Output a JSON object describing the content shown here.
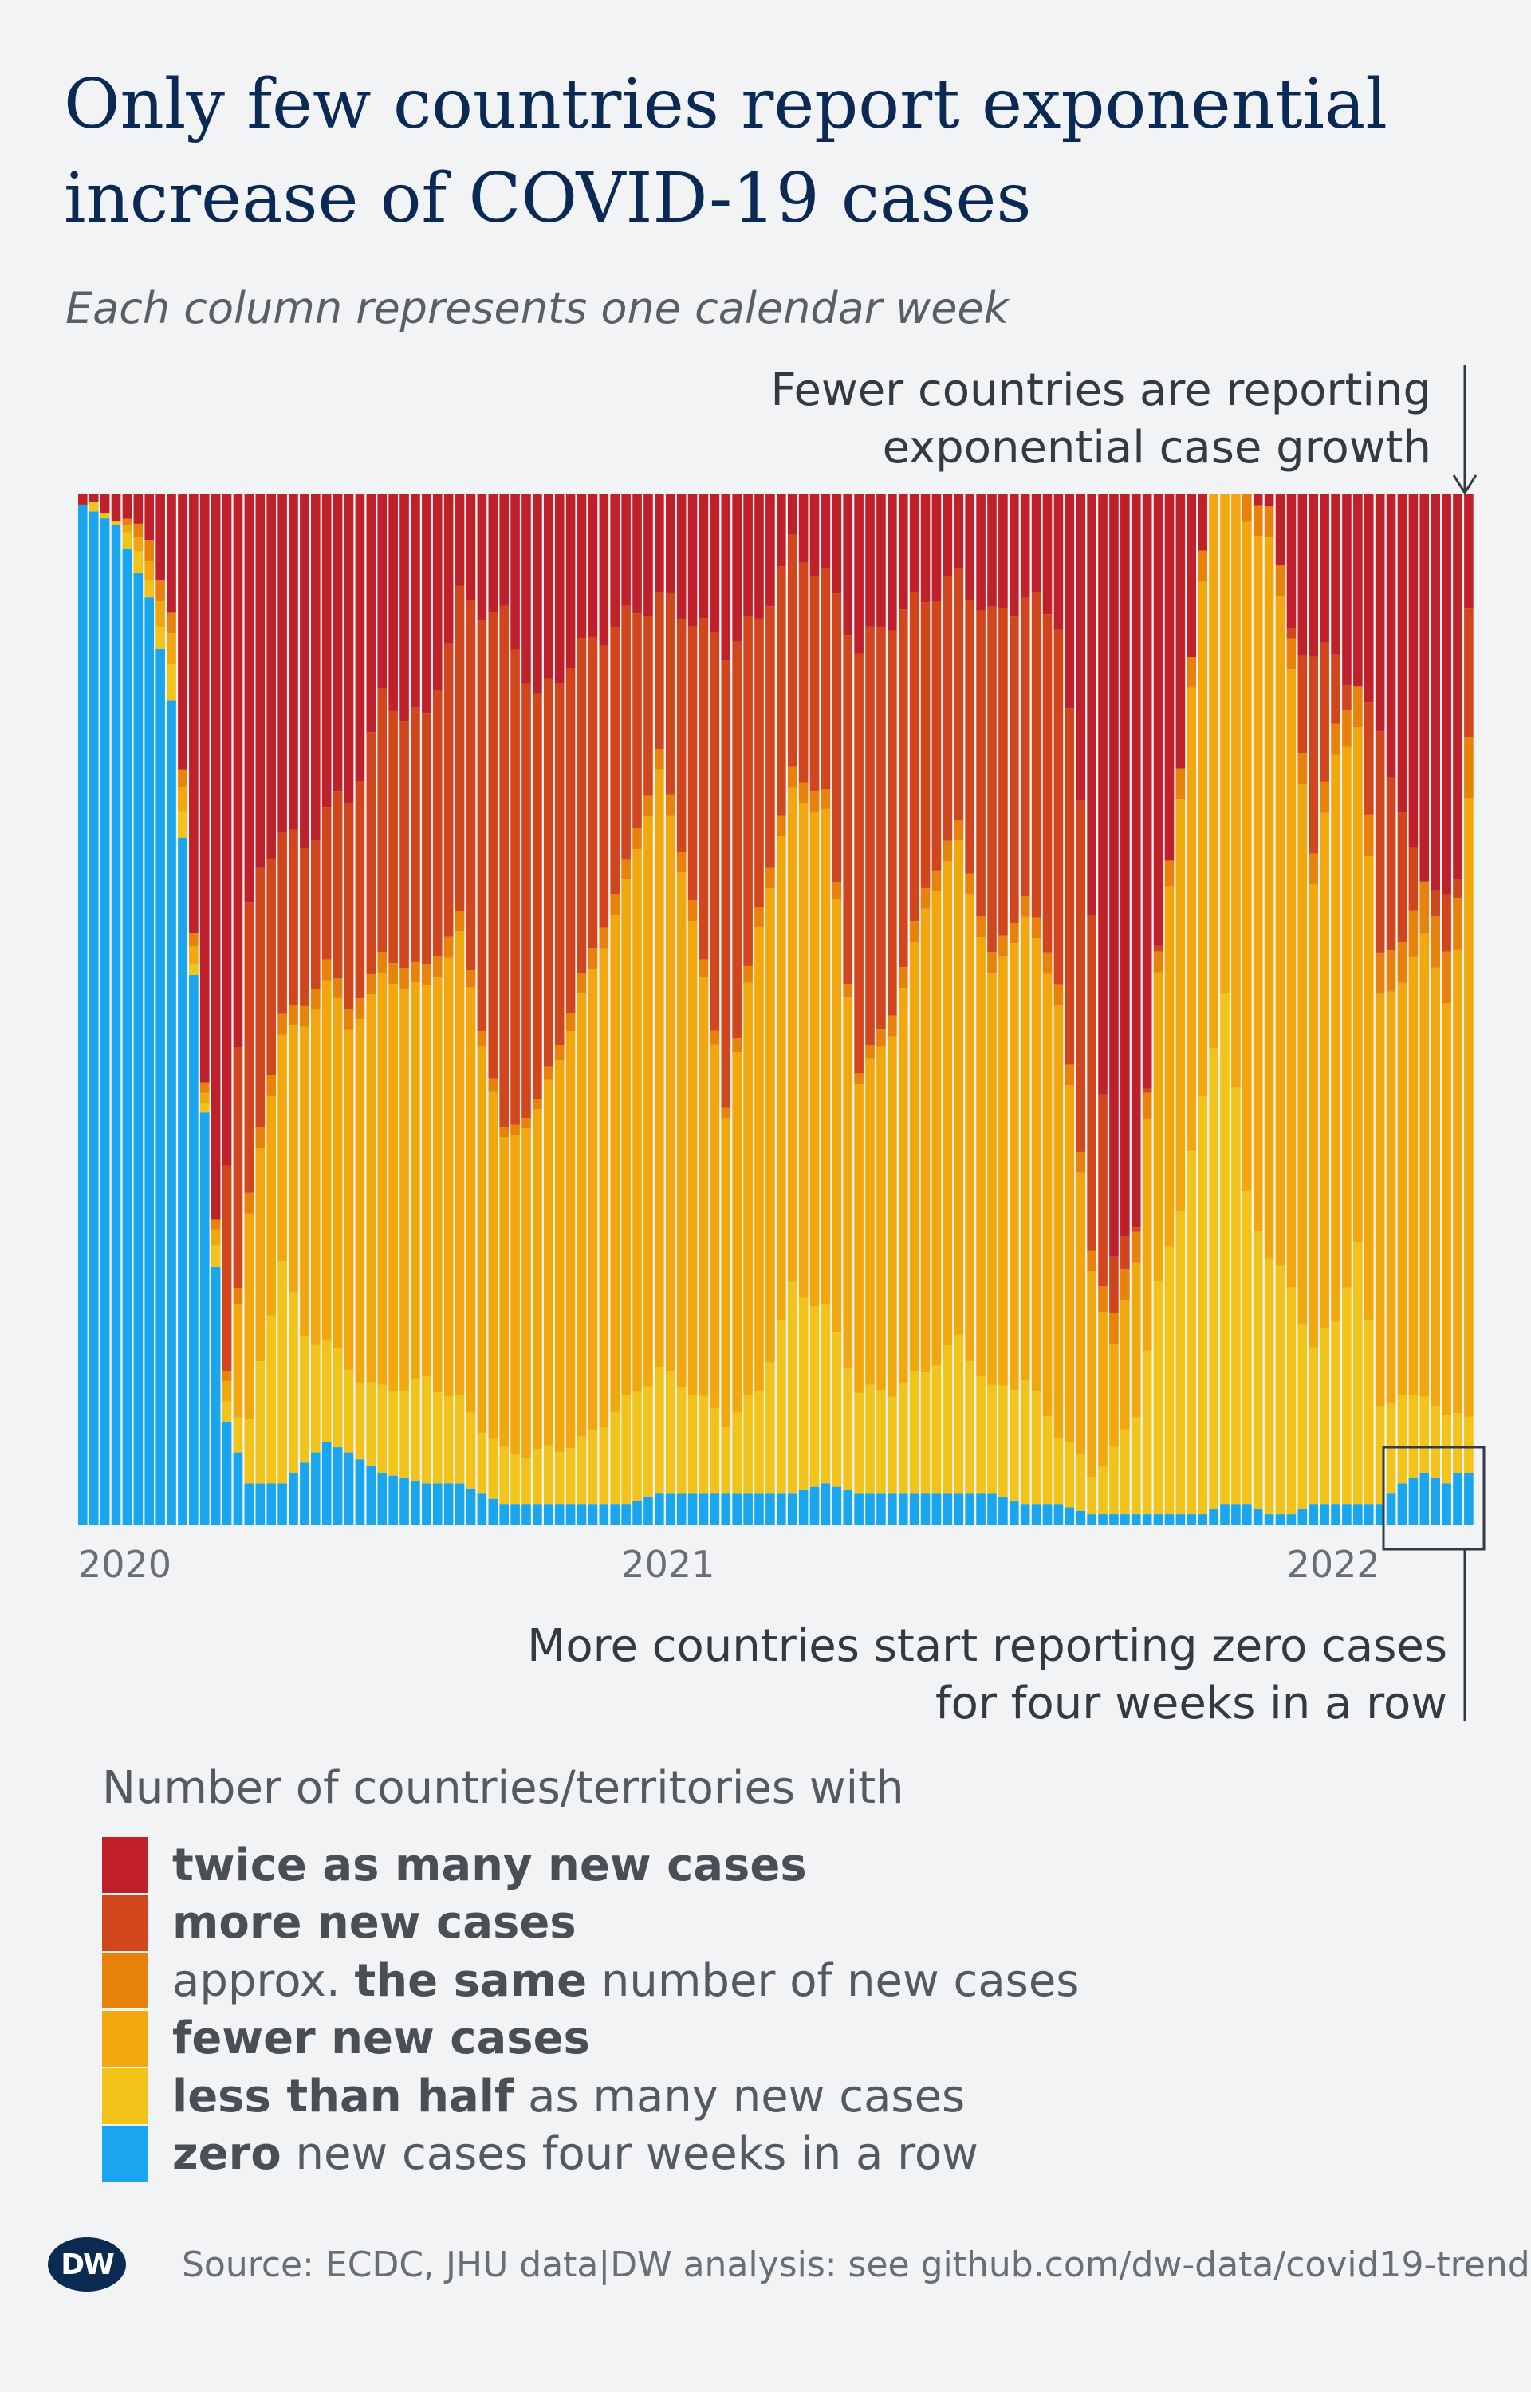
{
  "title": "Only few countries report exponential increase of COVID-19 cases",
  "subtitle": "Each column represents one calendar week",
  "colors": {
    "twice": "#c0202a",
    "more": "#d2461e",
    "same": "#e8820a",
    "fewer": "#f2a80c",
    "less_half": "#f2c41a",
    "zero": "#19a6ef",
    "frame": "#333a42"
  },
  "annotations": {
    "top": [
      "Fewer countries are reporting",
      "exponential case growth"
    ],
    "bottom": [
      "More countries start reporting zero cases",
      "for four weeks in a row"
    ]
  },
  "legend": {
    "title": "Number of countries/territories with",
    "items": [
      {
        "key": "twice",
        "bold": "twice as many new cases",
        "rest": ""
      },
      {
        "key": "more",
        "bold": "more new cases",
        "rest": ""
      },
      {
        "key": "same",
        "pre": "approx. ",
        "bold": "the same",
        "rest": " number of new cases"
      },
      {
        "key": "fewer",
        "bold": "fewer new cases",
        "rest": ""
      },
      {
        "key": "less_half",
        "bold": "less than half",
        "rest": " as many new cases"
      },
      {
        "key": "zero",
        "bold": "zero",
        "rest": " new cases four weeks in a row"
      }
    ]
  },
  "source": "Source: ECDC, JHU data|DW analysis: see github.com/dw-data/covid19-trend",
  "logo": "DW",
  "chart_data": {
    "type": "bar",
    "stacked": true,
    "normalized": true,
    "x_tick_labels": [
      "2020",
      "2021",
      "2022"
    ],
    "x_tick_weeks": [
      0,
      49,
      109
    ],
    "series": [
      {
        "name": "zero new cases four weeks in a row",
        "color_key": "zero"
      },
      {
        "name": "less than half as many new cases",
        "color_key": "less_half"
      },
      {
        "name": "fewer new cases",
        "color_key": "fewer"
      },
      {
        "name": "approx. the same number of new cases",
        "color_key": "same"
      },
      {
        "name": "more new cases",
        "color_key": "more"
      },
      {
        "name": "twice as many new cases",
        "color_key": "twice"
      }
    ],
    "keyframes": [
      {
        "w": 0,
        "z": 99,
        "l": 0,
        "f": 0,
        "s": 0,
        "m": 0.5
      },
      {
        "w": 3,
        "z": 97,
        "l": 1,
        "f": 0,
        "s": 0,
        "m": 2
      },
      {
        "w": 6,
        "z": 90,
        "l": 2,
        "f": 2,
        "s": 2,
        "m": 3
      },
      {
        "w": 8,
        "z": 80,
        "l": 3,
        "f": 3,
        "s": 2,
        "m": 5
      },
      {
        "w": 11,
        "z": 40,
        "l": 1,
        "f": 1,
        "s": 1,
        "m": 12
      },
      {
        "w": 13,
        "z": 10,
        "l": 2,
        "f": 2,
        "s": 1,
        "m": 35
      },
      {
        "w": 15,
        "z": 4,
        "l": 6,
        "f": 20,
        "s": 2,
        "m": 60
      },
      {
        "w": 18,
        "z": 4,
        "l": 22,
        "f": 22,
        "s": 2,
        "m": 68
      },
      {
        "w": 20,
        "z": 6,
        "l": 12,
        "f": 30,
        "s": 2,
        "m": 65
      },
      {
        "w": 22,
        "z": 8,
        "l": 10,
        "f": 35,
        "s": 2,
        "m": 70
      },
      {
        "w": 24,
        "z": 7,
        "l": 8,
        "f": 33,
        "s": 2,
        "m": 70
      },
      {
        "w": 27,
        "z": 5,
        "l": 8,
        "f": 40,
        "s": 2,
        "m": 80
      },
      {
        "w": 31,
        "z": 4,
        "l": 10,
        "f": 38,
        "s": 2,
        "m": 78
      },
      {
        "w": 34,
        "z": 4,
        "l": 8,
        "f": 45,
        "s": 2,
        "m": 90
      },
      {
        "w": 38,
        "z": 2,
        "l": 5,
        "f": 30,
        "s": 1,
        "m": 88
      },
      {
        "w": 41,
        "z": 2,
        "l": 5,
        "f": 33,
        "s": 1,
        "m": 80
      },
      {
        "w": 45,
        "z": 2,
        "l": 6,
        "f": 43,
        "s": 2,
        "m": 85
      },
      {
        "w": 49,
        "z": 2,
        "l": 10,
        "f": 50,
        "s": 2,
        "m": 88
      },
      {
        "w": 52,
        "z": 3,
        "l": 12,
        "f": 58,
        "s": 2,
        "m": 90
      },
      {
        "w": 55,
        "z": 3,
        "l": 10,
        "f": 46,
        "s": 2,
        "m": 88
      },
      {
        "w": 58,
        "z": 3,
        "l": 7,
        "f": 30,
        "s": 1,
        "m": 85
      },
      {
        "w": 61,
        "z": 3,
        "l": 10,
        "f": 45,
        "s": 2,
        "m": 88
      },
      {
        "w": 64,
        "z": 3,
        "l": 20,
        "f": 48,
        "s": 2,
        "m": 95
      },
      {
        "w": 67,
        "z": 4,
        "l": 17,
        "f": 48,
        "s": 2,
        "m": 92
      },
      {
        "w": 70,
        "z": 3,
        "l": 10,
        "f": 30,
        "s": 1,
        "m": 85
      },
      {
        "w": 73,
        "z": 3,
        "l": 10,
        "f": 35,
        "s": 2,
        "m": 88
      },
      {
        "w": 76,
        "z": 3,
        "l": 12,
        "f": 45,
        "s": 2,
        "m": 90
      },
      {
        "w": 79,
        "z": 3,
        "l": 15,
        "f": 48,
        "s": 2,
        "m": 92
      },
      {
        "w": 82,
        "z": 3,
        "l": 10,
        "f": 40,
        "s": 2,
        "m": 88
      },
      {
        "w": 85,
        "z": 2,
        "l": 12,
        "f": 45,
        "s": 2,
        "m": 90
      },
      {
        "w": 88,
        "z": 2,
        "l": 7,
        "f": 42,
        "s": 2,
        "m": 88
      },
      {
        "w": 91,
        "z": 1,
        "l": 4,
        "f": 20,
        "s": 2,
        "m": 60
      },
      {
        "w": 93,
        "z": 1,
        "l": 6,
        "f": 10,
        "s": 3,
        "m": 25
      },
      {
        "w": 95,
        "z": 1,
        "l": 10,
        "f": 15,
        "s": 3,
        "m": 30
      },
      {
        "w": 97,
        "z": 1,
        "l": 22,
        "f": 30,
        "s": 2,
        "m": 55
      },
      {
        "w": 99,
        "z": 1,
        "l": 30,
        "f": 40,
        "s": 3,
        "m": 70
      },
      {
        "w": 101,
        "z": 1,
        "l": 40,
        "f": 50,
        "s": 3,
        "m": 78
      },
      {
        "w": 103,
        "z": 2,
        "l": 50,
        "f": 72,
        "s": 3,
        "m": 84
      },
      {
        "w": 105,
        "z": 2,
        "l": 30,
        "f": 65,
        "s": 3,
        "m": 88
      },
      {
        "w": 107,
        "z": 1,
        "l": 25,
        "f": 70,
        "s": 3,
        "m": 86
      },
      {
        "w": 109,
        "z": 1,
        "l": 22,
        "f": 60,
        "s": 3,
        "m": 87
      },
      {
        "w": 111,
        "z": 2,
        "l": 15,
        "f": 45,
        "s": 3,
        "m": 84
      },
      {
        "w": 113,
        "z": 2,
        "l": 18,
        "f": 55,
        "s": 3,
        "m": 85
      },
      {
        "w": 115,
        "z": 2,
        "l": 25,
        "f": 50,
        "s": 4,
        "m": 80
      },
      {
        "w": 117,
        "z": 2,
        "l": 10,
        "f": 40,
        "s": 4,
        "m": 78
      },
      {
        "w": 119,
        "z": 4,
        "l": 8,
        "f": 40,
        "s": 4,
        "m": 68
      },
      {
        "w": 121,
        "z": 5,
        "l": 8,
        "f": 45,
        "s": 5,
        "m": 63
      },
      {
        "w": 123,
        "z": 4,
        "l": 6,
        "f": 40,
        "s": 5,
        "m": 60
      },
      {
        "w": 124,
        "z": 5,
        "l": 6,
        "f": 45,
        "s": 5,
        "m": 63
      },
      {
        "w": 125,
        "z": 5,
        "l": 6,
        "f": 60,
        "s": 6,
        "m": 90
      }
    ]
  }
}
